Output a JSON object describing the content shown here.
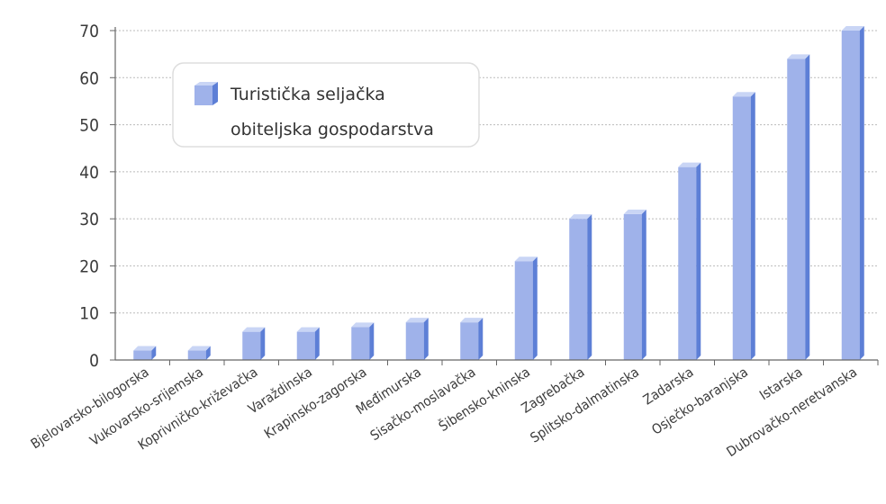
{
  "chart_data": {
    "type": "bar",
    "categories": [
      "Bjelovarsko-bilogorska",
      "Vukovarsko-srijemska",
      "Koprivničko-križevačka",
      "Varaždinska",
      "Krapinsko-zagorska",
      "Međimurska",
      "Sisačko-moslavačka",
      "Šibensko-kninska",
      "Zagrebačka",
      "Splitsko-dalmatinska",
      "Zadarska",
      "Osječko-baranjska",
      "Istarska",
      "Dubrovačko-neretvanska"
    ],
    "series": [
      {
        "name": "Turistička seljačka obiteljska gospodarstva",
        "values": [
          2,
          2,
          6,
          6,
          7,
          8,
          8,
          21,
          30,
          31,
          41,
          56,
          64,
          70
        ]
      }
    ],
    "yticks": [
      0,
      10,
      20,
      30,
      40,
      50,
      60,
      70
    ],
    "ylim": [
      0,
      70
    ],
    "grid": true,
    "legend_position": "top-left",
    "legend_lines": [
      "Turistička seljačka",
      "obiteljska gospodarstva"
    ],
    "colors": {
      "bar_front": "#9fb2ea",
      "bar_side": "#5d7fd6",
      "bar_top": "#c9d5f5",
      "axis": "#666666",
      "grid": "#bbbbbb"
    }
  }
}
